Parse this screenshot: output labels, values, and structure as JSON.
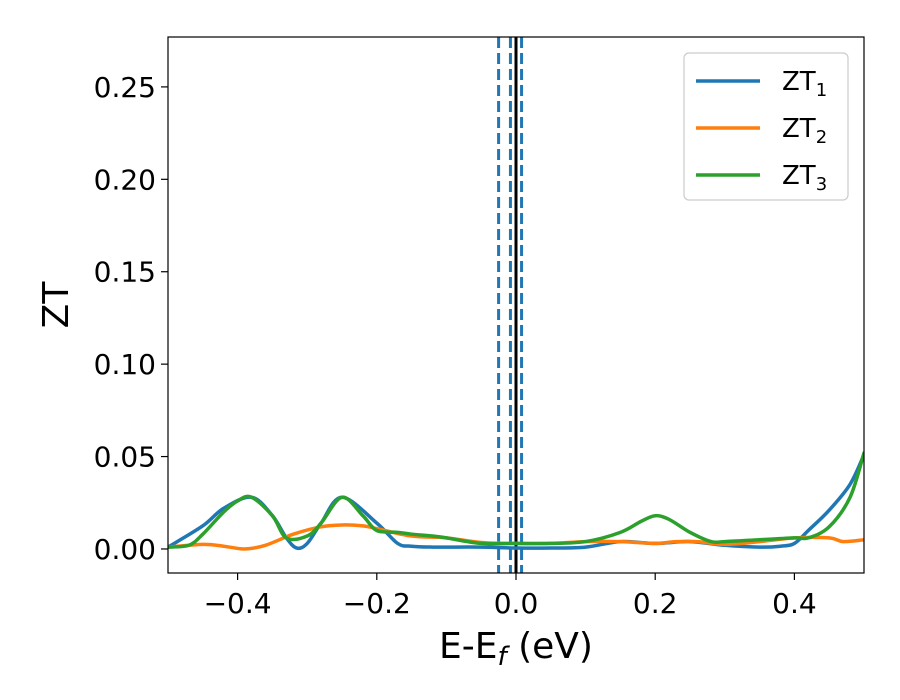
{
  "chart_data": {
    "type": "line",
    "xlabel": "E-E",
    "xlabel_sub": "f",
    "xlabel_unit": " (eV)",
    "ylabel": "ZT",
    "xlim": [
      -0.5,
      0.5
    ],
    "ylim": [
      -0.013,
      0.277
    ],
    "xticks": [
      -0.4,
      -0.2,
      0.0,
      0.2,
      0.4
    ],
    "xtick_labels": [
      "−0.4",
      "−0.2",
      "0.0",
      "0.2",
      "0.4"
    ],
    "yticks": [
      0.0,
      0.05,
      0.1,
      0.15,
      0.2,
      0.25
    ],
    "ytick_labels": [
      "0.00",
      "0.05",
      "0.10",
      "0.15",
      "0.20",
      "0.25"
    ],
    "grid": false,
    "legend_position": "top-right",
    "vlines": [
      {
        "x": -0.025,
        "style": "dashed",
        "color": "#1f77b4"
      },
      {
        "x": -0.008,
        "style": "dashed",
        "color": "#1f77b4"
      },
      {
        "x": 0.008,
        "style": "dashed",
        "color": "#1f77b4"
      },
      {
        "x": 0.0,
        "style": "solid",
        "color": "#000000"
      }
    ],
    "series": [
      {
        "name": "ZT",
        "sub": "1",
        "color": "#1f77b4",
        "x": [
          -0.5,
          -0.45,
          -0.42,
          -0.38,
          -0.35,
          -0.33,
          -0.315,
          -0.3,
          -0.28,
          -0.25,
          -0.2,
          -0.17,
          -0.15,
          -0.12,
          -0.1,
          -0.05,
          0.0,
          0.05,
          0.1,
          0.15,
          0.2,
          0.25,
          0.3,
          0.35,
          0.38,
          0.4,
          0.42,
          0.45,
          0.48,
          0.5
        ],
        "y": [
          0.001,
          0.0125,
          0.022,
          0.028,
          0.018,
          0.006,
          0.0005,
          0.003,
          0.014,
          0.028,
          0.014,
          0.003,
          0.0015,
          0.001,
          0.001,
          0.001,
          0.0005,
          0.0005,
          0.001,
          0.004,
          0.003,
          0.004,
          0.002,
          0.001,
          0.0015,
          0.003,
          0.01,
          0.021,
          0.035,
          0.051
        ]
      },
      {
        "name": "ZT",
        "sub": "2",
        "color": "#ff7f0e",
        "x": [
          -0.5,
          -0.45,
          -0.42,
          -0.39,
          -0.36,
          -0.32,
          -0.28,
          -0.25,
          -0.22,
          -0.2,
          -0.15,
          -0.1,
          -0.05,
          0.0,
          0.05,
          0.1,
          0.15,
          0.2,
          0.23,
          0.26,
          0.3,
          0.35,
          0.4,
          0.45,
          0.47,
          0.5
        ],
        "y": [
          0.001,
          0.0025,
          0.0015,
          0.0,
          0.002,
          0.008,
          0.012,
          0.013,
          0.0125,
          0.011,
          0.007,
          0.006,
          0.0035,
          0.003,
          0.003,
          0.004,
          0.004,
          0.003,
          0.004,
          0.004,
          0.0025,
          0.004,
          0.006,
          0.006,
          0.004,
          0.005
        ]
      },
      {
        "name": "ZT",
        "sub": "3",
        "color": "#2ca02c",
        "x": [
          -0.5,
          -0.47,
          -0.45,
          -0.42,
          -0.4,
          -0.38,
          -0.35,
          -0.33,
          -0.3,
          -0.28,
          -0.25,
          -0.22,
          -0.2,
          -0.17,
          -0.15,
          -0.12,
          -0.1,
          -0.05,
          0.0,
          0.05,
          0.1,
          0.15,
          0.18,
          0.2,
          0.22,
          0.25,
          0.28,
          0.3,
          0.35,
          0.4,
          0.42,
          0.45,
          0.48,
          0.5
        ],
        "y": [
          0.001,
          0.002,
          0.008,
          0.02,
          0.026,
          0.028,
          0.018,
          0.006,
          0.007,
          0.014,
          0.028,
          0.018,
          0.01,
          0.009,
          0.008,
          0.007,
          0.006,
          0.003,
          0.003,
          0.003,
          0.004,
          0.009,
          0.015,
          0.018,
          0.016,
          0.009,
          0.004,
          0.004,
          0.005,
          0.006,
          0.006,
          0.012,
          0.028,
          0.052
        ]
      }
    ]
  }
}
